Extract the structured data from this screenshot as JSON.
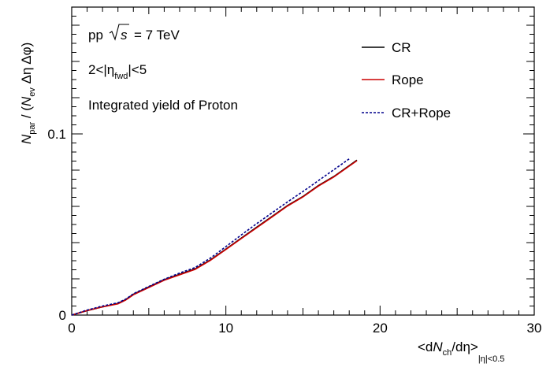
{
  "chart_data": {
    "type": "line",
    "annotations": {
      "system": "pp",
      "energy_rhs": "= 7 TeV",
      "eta_cut": "2<|η",
      "eta_sub": "fwd",
      "eta_tail": "|<5",
      "yield_text": "Integrated yield of Proton"
    },
    "xlabel": {
      "pre": "<d",
      "N": "N",
      "sub": "ch",
      "post": "/dη>",
      "range": "|η|<0.5"
    },
    "ylabel": {
      "N": "N",
      "sub1": "par",
      "mid": " / (",
      "N2": "N",
      "sub2": "ev",
      "post": " Δη Δφ)"
    },
    "xlim": [
      0,
      30
    ],
    "ylim": [
      0,
      0.17
    ],
    "xticks": [
      0,
      10,
      20,
      30
    ],
    "xtick_labels": [
      "0",
      "10",
      "20",
      "30"
    ],
    "yticks": [
      0,
      0.1
    ],
    "ytick_labels": [
      "0",
      "0.1"
    ],
    "legend_position": "top-right",
    "series": [
      {
        "name": "CR",
        "color": "#000000",
        "style": "solid",
        "x": [
          0,
          1,
          2,
          3,
          3.5,
          4,
          5,
          6,
          7,
          8,
          9,
          10,
          11,
          12,
          13,
          14,
          15,
          16,
          17,
          18,
          18.5
        ],
        "y": [
          0,
          0.0025,
          0.0045,
          0.0065,
          0.0085,
          0.0115,
          0.0155,
          0.0195,
          0.0225,
          0.0255,
          0.0305,
          0.0365,
          0.0425,
          0.0485,
          0.0545,
          0.0605,
          0.0655,
          0.0715,
          0.0765,
          0.0825,
          0.0855
        ]
      },
      {
        "name": "Rope",
        "color": "#cc0000",
        "style": "solid",
        "x": [
          0,
          1,
          2,
          3,
          3.5,
          4,
          5,
          6,
          7,
          8,
          9,
          10,
          11,
          12,
          13,
          14,
          15,
          16,
          17,
          18,
          18.5
        ],
        "y": [
          0,
          0.0025,
          0.0045,
          0.0062,
          0.0083,
          0.0112,
          0.0152,
          0.0192,
          0.0222,
          0.0252,
          0.0302,
          0.0362,
          0.0422,
          0.0482,
          0.0542,
          0.0602,
          0.0652,
          0.0712,
          0.0762,
          0.0822,
          0.0852
        ]
      },
      {
        "name": "CR+Rope",
        "color": "#00008b",
        "style": "dotted",
        "x": [
          0,
          1,
          2,
          3,
          3.5,
          4,
          5,
          6,
          7,
          8,
          9,
          10,
          11,
          12,
          13,
          14,
          15,
          16,
          17,
          18
        ],
        "y": [
          0,
          0.0028,
          0.005,
          0.0068,
          0.0088,
          0.0118,
          0.0158,
          0.0198,
          0.0232,
          0.0262,
          0.0315,
          0.0378,
          0.0442,
          0.0505,
          0.0565,
          0.0625,
          0.0682,
          0.0742,
          0.0802,
          0.0862
        ]
      }
    ]
  }
}
